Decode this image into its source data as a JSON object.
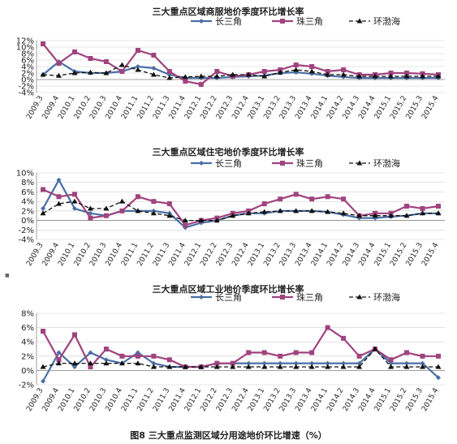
{
  "figure": {
    "caption": "图8  三大重点监测区域分用途地价环比增速（%）",
    "panel_marker": "■"
  },
  "colors": {
    "csj": "#4a6fa5",
    "zsj": "#a0437e",
    "hbh": "#111111",
    "grid": "#d0d0d0"
  },
  "chart_data": [
    {
      "type": "line",
      "title": "三大重点区域商服地价季度环比增长率",
      "categories": [
        "2009.3",
        "2009.4",
        "2010.1",
        "2010.2",
        "2010.3",
        "2010.4",
        "2011.1",
        "2011.2",
        "2011.3",
        "2011.4",
        "2012.1",
        "2012.2",
        "2012.3",
        "2012.4",
        "2013.1",
        "2013.2",
        "2013.3",
        "2013.4",
        "2014.1",
        "2014.2",
        "2014.3",
        "2014.4",
        "2015.1",
        "2015.2",
        "2015.3",
        "2015.4"
      ],
      "y_ticks": [
        "-4%",
        "-2%",
        "0%",
        "2%",
        "4%",
        "6%",
        "8%",
        "10%",
        "12%"
      ],
      "ylim": [
        -4,
        12
      ],
      "legend_position": "top-right",
      "series": [
        {
          "name": "长三角",
          "values": [
            1.5,
            5.5,
            2.5,
            2.0,
            2.0,
            2.5,
            4.0,
            3.5,
            1.5,
            0.5,
            0.5,
            0.5,
            0.8,
            1.0,
            1.2,
            2.0,
            2.2,
            1.8,
            1.2,
            0.8,
            0.5,
            0.5,
            0.5,
            0.5,
            0.5,
            0.5
          ]
        },
        {
          "name": "珠三角",
          "values": [
            11.0,
            5.0,
            8.5,
            6.5,
            5.5,
            2.5,
            9.0,
            7.5,
            2.5,
            -0.5,
            -1.5,
            2.5,
            1.0,
            1.5,
            2.5,
            3.0,
            4.5,
            4.0,
            2.5,
            3.0,
            1.5,
            1.5,
            2.0,
            2.0,
            1.8,
            1.5
          ]
        },
        {
          "name": "环渤海",
          "values": [
            1.5,
            1.2,
            2.0,
            2.2,
            2.0,
            4.5,
            3.0,
            1.5,
            0.5,
            0.8,
            1.0,
            1.0,
            1.5,
            1.5,
            1.0,
            2.2,
            3.0,
            2.5,
            1.5,
            1.5,
            1.0,
            1.0,
            1.0,
            1.0,
            1.0,
            1.0
          ]
        }
      ]
    },
    {
      "type": "line",
      "title": "三大重点区域住宅地价季度环比增长率",
      "categories": [
        "2009.3",
        "2009.4",
        "2010.1",
        "2010.2",
        "2010.3",
        "2010.4",
        "2011.1",
        "2011.2",
        "2011.3",
        "2011.4",
        "2012.1",
        "2012.2",
        "2012.3",
        "2012.4",
        "2013.1",
        "2013.2",
        "2013.3",
        "2013.4",
        "2014.1",
        "2014.2",
        "2014.3",
        "2014.4",
        "2015.1",
        "2015.2",
        "2015.3",
        "2015.4"
      ],
      "y_ticks": [
        "-4%",
        "-2%",
        "0%",
        "2%",
        "4%",
        "6%",
        "8%",
        "10%"
      ],
      "ylim": [
        -4,
        10
      ],
      "legend_position": "top-right",
      "series": [
        {
          "name": "长三角",
          "values": [
            2.5,
            8.5,
            2.5,
            1.5,
            1.0,
            2.0,
            2.0,
            2.0,
            1.5,
            -1.5,
            -0.5,
            0.0,
            1.0,
            1.5,
            1.5,
            2.0,
            2.0,
            2.0,
            1.8,
            1.2,
            0.5,
            0.5,
            0.8,
            1.0,
            1.5,
            1.5
          ]
        },
        {
          "name": "珠三角",
          "values": [
            6.5,
            5.0,
            5.5,
            0.5,
            1.0,
            2.0,
            5.0,
            4.0,
            3.5,
            -1.0,
            0.0,
            0.5,
            1.5,
            2.0,
            3.5,
            4.5,
            5.5,
            4.5,
            5.0,
            4.5,
            1.0,
            1.5,
            1.5,
            3.0,
            2.5,
            3.0
          ]
        },
        {
          "name": "环渤海",
          "values": [
            1.5,
            3.5,
            4.0,
            2.5,
            2.5,
            4.0,
            2.0,
            1.5,
            1.0,
            0.0,
            0.0,
            0.0,
            1.0,
            1.5,
            1.8,
            2.0,
            2.0,
            2.0,
            1.8,
            1.5,
            1.0,
            1.0,
            1.0,
            1.0,
            1.5,
            1.5
          ]
        }
      ]
    },
    {
      "type": "line",
      "title": "三大重点区域工业地价季度环比增长率",
      "categories": [
        "2009.3",
        "2009.4",
        "2010.1",
        "2010.2",
        "2010.3",
        "2010.4",
        "2011.1",
        "2011.2",
        "2011.3",
        "2011.4",
        "2012.1",
        "2012.2",
        "2012.3",
        "2012.4",
        "2013.1",
        "2013.2",
        "2013.3",
        "2013.4",
        "2014.1",
        "2014.2",
        "2014.3",
        "2014.4",
        "2015.1",
        "2015.2",
        "2015.3",
        "2015.4"
      ],
      "y_ticks": [
        "-2%",
        "0%",
        "2%",
        "4%",
        "6%",
        "8%"
      ],
      "ylim": [
        -2,
        8
      ],
      "legend_position": "top-right",
      "series": [
        {
          "name": "长三角",
          "values": [
            -1.5,
            2.5,
            0.5,
            2.5,
            1.5,
            1.0,
            2.5,
            1.0,
            0.5,
            0.5,
            0.5,
            1.0,
            1.0,
            1.0,
            1.0,
            1.0,
            1.0,
            1.0,
            1.0,
            1.0,
            1.0,
            3.0,
            1.0,
            1.0,
            1.0,
            -1.0
          ]
        },
        {
          "name": "珠三角",
          "values": [
            5.5,
            1.5,
            5.0,
            0.5,
            3.0,
            2.0,
            2.0,
            2.0,
            1.5,
            0.5,
            0.5,
            1.0,
            1.0,
            2.5,
            2.5,
            2.0,
            2.5,
            2.5,
            6.0,
            4.5,
            2.0,
            3.0,
            1.5,
            2.5,
            2.0,
            2.0
          ]
        },
        {
          "name": "环渤海",
          "values": [
            0.5,
            1.0,
            1.0,
            1.0,
            1.0,
            1.0,
            1.0,
            0.5,
            0.5,
            0.5,
            0.5,
            0.5,
            0.5,
            0.5,
            0.5,
            0.5,
            0.5,
            0.5,
            0.5,
            0.5,
            0.5,
            3.0,
            0.5,
            0.5,
            0.5,
            0.5
          ]
        }
      ]
    }
  ]
}
